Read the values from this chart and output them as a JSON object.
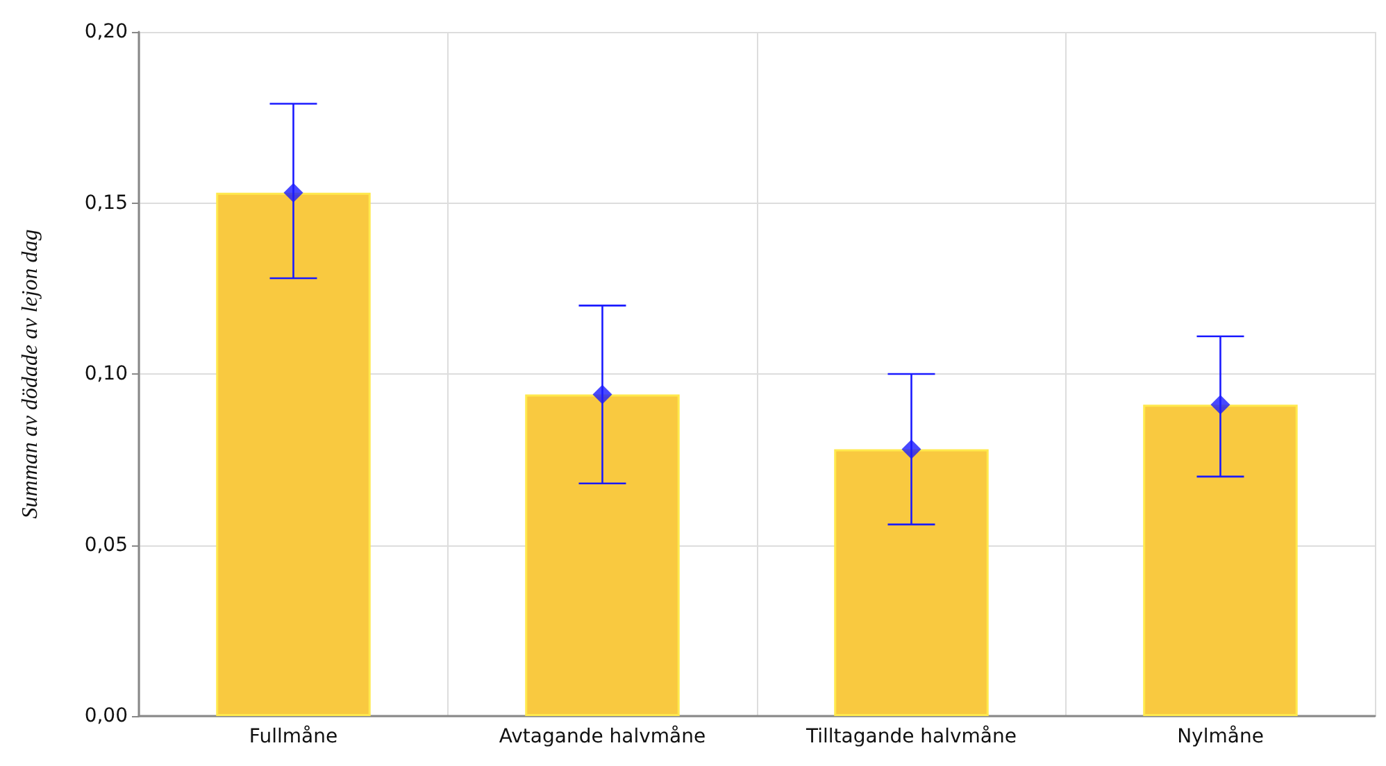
{
  "chart_data": {
    "type": "bar",
    "ylabel": "Summan av dödade av lejon dag",
    "categories": [
      "Fullmåne",
      "Avtagande halvmåne",
      "Tilltagande halvmåne",
      "Nylmåne"
    ],
    "series": [
      {
        "color": "#f9c940",
        "values": [
          0.153,
          0.094,
          0.078,
          0.091
        ],
        "errors": [
          [
            0.128,
            0.179
          ],
          [
            0.068,
            0.12
          ],
          [
            0.056,
            0.1
          ],
          [
            0.07,
            0.111
          ]
        ]
      },
      {
        "type": "scatter",
        "color": "#1a1aff",
        "marker": "diamond",
        "x": [
          "Fullmåne",
          "Avtagande halvmåne",
          "Tilltagande halvmåne",
          "Nylmåne"
        ],
        "values": [
          0.153,
          0.094,
          0.078,
          0.091
        ]
      }
    ],
    "ylim": [
      0,
      0.2
    ],
    "yticks": [
      {
        "value": 0,
        "label": "0,00"
      },
      {
        "value": 0.05,
        "label": "0,05"
      },
      {
        "value": 0.1,
        "label": "0,10"
      },
      {
        "value": 0.15,
        "label": "0,15"
      },
      {
        "value": 0.2,
        "label": "0,20"
      }
    ],
    "grid": true
  }
}
